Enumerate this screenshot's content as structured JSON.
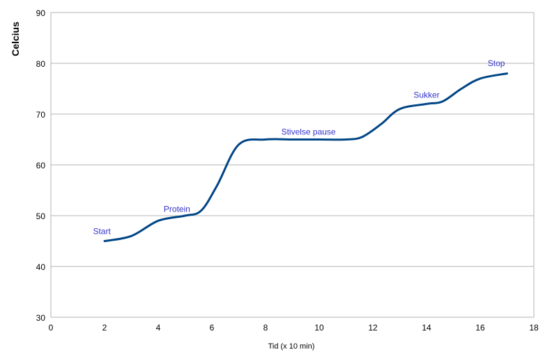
{
  "chart_data": {
    "type": "line",
    "ylabel": "Celcius",
    "xlabel": "Tid (x 10 min)",
    "xlim": [
      0,
      18
    ],
    "ylim": [
      30,
      90
    ],
    "x_ticks": [
      "0",
      "2",
      "4",
      "6",
      "8",
      "10",
      "12",
      "14",
      "16",
      "18"
    ],
    "y_ticks": [
      "30",
      "40",
      "50",
      "60",
      "70",
      "80",
      "90"
    ],
    "grid": "horizontal",
    "line_color": "#004586",
    "annotation_color": "#3333cc",
    "series": [
      {
        "values": [
          {
            "x": 2,
            "y": 45
          },
          {
            "x": 3,
            "y": 46
          },
          {
            "x": 4,
            "y": 49
          },
          {
            "x": 5,
            "y": 50
          },
          {
            "x": 5.6,
            "y": 51
          },
          {
            "x": 6.2,
            "y": 56
          },
          {
            "x": 7,
            "y": 64
          },
          {
            "x": 8,
            "y": 65
          },
          {
            "x": 9,
            "y": 65
          },
          {
            "x": 10,
            "y": 65
          },
          {
            "x": 11,
            "y": 65
          },
          {
            "x": 11.6,
            "y": 65.5
          },
          {
            "x": 12.3,
            "y": 68
          },
          {
            "x": 13,
            "y": 71
          },
          {
            "x": 14,
            "y": 72
          },
          {
            "x": 14.6,
            "y": 72.5
          },
          {
            "x": 15.3,
            "y": 75
          },
          {
            "x": 16,
            "y": 77
          },
          {
            "x": 17,
            "y": 78
          }
        ]
      }
    ],
    "annotations": [
      {
        "text": "Start",
        "x": 1.9,
        "y": 46.9
      },
      {
        "text": "Protein",
        "x": 4.7,
        "y": 51.3
      },
      {
        "text": "Stivelse pause",
        "x": 9.6,
        "y": 66.5
      },
      {
        "text": "Sukker",
        "x": 14.0,
        "y": 73.8
      },
      {
        "text": "Stop",
        "x": 16.6,
        "y": 80.0
      }
    ]
  }
}
